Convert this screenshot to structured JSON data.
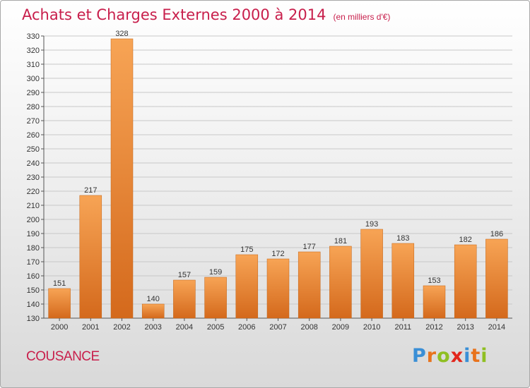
{
  "header": {
    "title": "Achats et Charges Externes 2000 à 2014",
    "subtitle": "(en milliers d'€)"
  },
  "footer": {
    "commune": "COUSANCE"
  },
  "brand": {
    "letters": [
      "P",
      "r",
      "o",
      "x",
      "i",
      "t",
      "i"
    ],
    "colors": [
      "#3a8fd6",
      "#e8731d",
      "#8fbf22",
      "#e2261c",
      "#3a8fd6",
      "#e8731d",
      "#8fbf22"
    ]
  },
  "colors": {
    "accent": "#c81e4b",
    "bar_top": "#f7a455",
    "bar_bottom": "#d4691c",
    "grid": "#c8c8c8"
  },
  "chart_data": {
    "type": "bar",
    "title": "Achats et Charges Externes 2000 à 2014",
    "subtitle": "(en milliers d'€)",
    "categories": [
      "2000",
      "2001",
      "2002",
      "2003",
      "2004",
      "2005",
      "2006",
      "2007",
      "2008",
      "2009",
      "2010",
      "2011",
      "2012",
      "2013",
      "2014"
    ],
    "values": [
      151,
      217,
      328,
      140,
      157,
      159,
      175,
      172,
      177,
      181,
      193,
      183,
      153,
      182,
      186
    ],
    "ylim": [
      130,
      330
    ],
    "yticks": [
      130,
      140,
      150,
      160,
      170,
      180,
      190,
      200,
      210,
      220,
      230,
      240,
      250,
      260,
      270,
      280,
      290,
      300,
      310,
      320,
      330
    ],
    "grid": true,
    "data_labels": true
  }
}
